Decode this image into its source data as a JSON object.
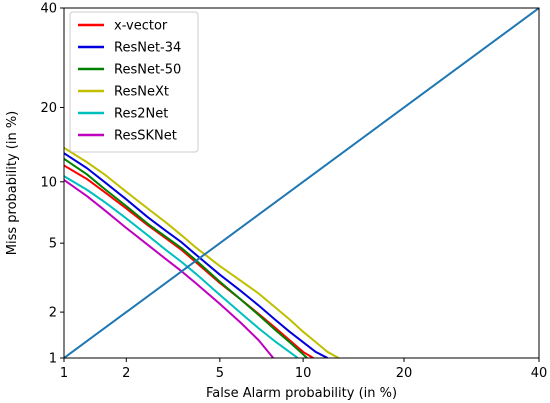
{
  "chart_data": {
    "type": "line",
    "xlabel": "False Alarm probability (in %)",
    "ylabel": "Miss probability (in %)",
    "x_scale": "probit",
    "y_scale": "probit",
    "xlim": [
      1,
      40
    ],
    "ylim": [
      1,
      40
    ],
    "x_ticks": [
      1,
      2,
      5,
      10,
      20,
      40
    ],
    "y_ticks": [
      1,
      2,
      5,
      10,
      20,
      40
    ],
    "x_tick_labels": [
      "1",
      "2",
      "5",
      "10",
      "20",
      "40"
    ],
    "y_tick_labels": [
      "1",
      "2",
      "5",
      "10",
      "20",
      "40"
    ],
    "grid": false,
    "legend_position": "top-left",
    "series": [
      {
        "name": "x-vector",
        "color": "#ff0000",
        "x": [
          1.0,
          1.3,
          1.6,
          2.0,
          2.5,
          3.0,
          3.5,
          4.0,
          5.0,
          6.0,
          7.0,
          8.0,
          9.0,
          10.0,
          10.8
        ],
        "y": [
          11.8,
          10.3,
          8.9,
          7.5,
          6.2,
          5.3,
          4.6,
          3.95,
          3.0,
          2.4,
          1.95,
          1.6,
          1.32,
          1.1,
          1.0
        ]
      },
      {
        "name": "ResNet-34",
        "color": "#0000dd",
        "x": [
          1.0,
          1.3,
          1.6,
          2.0,
          2.5,
          3.0,
          3.5,
          4.0,
          5.0,
          6.0,
          7.0,
          8.0,
          9.0,
          10.0,
          11.0,
          12.0
        ],
        "y": [
          13.3,
          11.5,
          9.9,
          8.3,
          6.8,
          5.8,
          5.05,
          4.35,
          3.35,
          2.7,
          2.2,
          1.8,
          1.5,
          1.28,
          1.1,
          1.0
        ]
      },
      {
        "name": "ResNet-50",
        "color": "#008000",
        "x": [
          1.0,
          1.3,
          1.6,
          2.0,
          2.5,
          3.0,
          3.5,
          4.0,
          5.0,
          6.0,
          7.0,
          8.0,
          9.0,
          10.0,
          10.3
        ],
        "y": [
          12.6,
          10.8,
          9.2,
          7.7,
          6.3,
          5.4,
          4.7,
          4.05,
          3.05,
          2.4,
          1.92,
          1.55,
          1.28,
          1.06,
          1.0
        ]
      },
      {
        "name": "ResNeXt",
        "color": "#bfbf00",
        "x": [
          1.0,
          1.3,
          1.6,
          2.0,
          2.5,
          3.0,
          3.5,
          4.0,
          5.0,
          6.0,
          7.0,
          8.0,
          9.0,
          10.0,
          11.0,
          12.0,
          13.0
        ],
        "y": [
          14.0,
          12.2,
          10.7,
          9.0,
          7.5,
          6.4,
          5.5,
          4.75,
          3.75,
          3.1,
          2.6,
          2.15,
          1.8,
          1.5,
          1.28,
          1.1,
          1.0
        ]
      },
      {
        "name": "Res2Net",
        "color": "#00bfbf",
        "x": [
          1.0,
          1.3,
          1.6,
          2.0,
          2.5,
          3.0,
          3.5,
          4.0,
          5.0,
          6.0,
          7.0,
          8.0,
          9.0,
          9.6
        ],
        "y": [
          10.6,
          9.2,
          8.0,
          6.7,
          5.5,
          4.6,
          3.95,
          3.4,
          2.55,
          1.98,
          1.58,
          1.3,
          1.1,
          1.0
        ]
      },
      {
        "name": "ResSKNet",
        "color": "#bf00bf",
        "x": [
          1.0,
          1.3,
          1.6,
          2.0,
          2.5,
          3.0,
          3.5,
          4.0,
          5.0,
          6.0,
          7.0,
          7.9
        ],
        "y": [
          10.2,
          8.6,
          7.3,
          6.0,
          4.9,
          4.1,
          3.5,
          3.0,
          2.25,
          1.72,
          1.32,
          1.0
        ]
      },
      {
        "name": "",
        "color": "#1f77b4",
        "x": [
          1,
          2,
          5,
          10,
          20,
          40
        ],
        "y": [
          1,
          2,
          5,
          10,
          20,
          40
        ]
      }
    ]
  }
}
